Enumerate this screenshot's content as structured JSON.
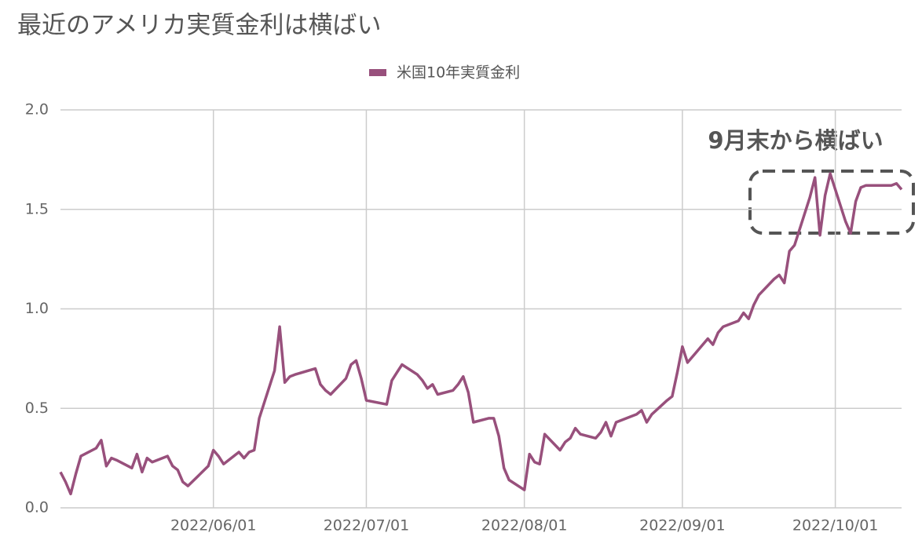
{
  "chart_data": {
    "type": "line",
    "title": "最近のアメリカ実質金利は横ばい",
    "annotation": "9月末から横ばい",
    "x": [
      "2022/05/02",
      "2022/05/03",
      "2022/05/04",
      "2022/05/05",
      "2022/05/06",
      "2022/05/09",
      "2022/05/10",
      "2022/05/11",
      "2022/05/12",
      "2022/05/13",
      "2022/05/16",
      "2022/05/17",
      "2022/05/18",
      "2022/05/19",
      "2022/05/20",
      "2022/05/23",
      "2022/05/24",
      "2022/05/25",
      "2022/05/26",
      "2022/05/27",
      "2022/05/31",
      "2022/06/01",
      "2022/06/02",
      "2022/06/03",
      "2022/06/06",
      "2022/06/07",
      "2022/06/08",
      "2022/06/09",
      "2022/06/10",
      "2022/06/13",
      "2022/06/14",
      "2022/06/15",
      "2022/06/16",
      "2022/06/17",
      "2022/06/21",
      "2022/06/22",
      "2022/06/23",
      "2022/06/24",
      "2022/06/27",
      "2022/06/28",
      "2022/06/29",
      "2022/06/30",
      "2022/07/01",
      "2022/07/05",
      "2022/07/06",
      "2022/07/07",
      "2022/07/08",
      "2022/07/11",
      "2022/07/12",
      "2022/07/13",
      "2022/07/14",
      "2022/07/15",
      "2022/07/18",
      "2022/07/19",
      "2022/07/20",
      "2022/07/21",
      "2022/07/22",
      "2022/07/25",
      "2022/07/26",
      "2022/07/27",
      "2022/07/28",
      "2022/07/29",
      "2022/08/01",
      "2022/08/02",
      "2022/08/03",
      "2022/08/04",
      "2022/08/05",
      "2022/08/08",
      "2022/08/09",
      "2022/08/10",
      "2022/08/11",
      "2022/08/12",
      "2022/08/15",
      "2022/08/16",
      "2022/08/17",
      "2022/08/18",
      "2022/08/19",
      "2022/08/22",
      "2022/08/23",
      "2022/08/24",
      "2022/08/25",
      "2022/08/26",
      "2022/08/29",
      "2022/08/30",
      "2022/08/31",
      "2022/09/01",
      "2022/09/02",
      "2022/09/06",
      "2022/09/07",
      "2022/09/08",
      "2022/09/09",
      "2022/09/12",
      "2022/09/13",
      "2022/09/14",
      "2022/09/15",
      "2022/09/16",
      "2022/09/19",
      "2022/09/20",
      "2022/09/21",
      "2022/09/22",
      "2022/09/23",
      "2022/09/26",
      "2022/09/27",
      "2022/09/28",
      "2022/09/29",
      "2022/09/30",
      "2022/10/03",
      "2022/10/04",
      "2022/10/05",
      "2022/10/06",
      "2022/10/07",
      "2022/10/11",
      "2022/10/12",
      "2022/10/13",
      "2022/10/14"
    ],
    "series": [
      {
        "name": "米国10年実質金利",
        "color": "#98507c",
        "values": [
          0.18,
          0.13,
          0.07,
          0.17,
          0.26,
          0.3,
          0.34,
          0.21,
          0.25,
          0.24,
          0.2,
          0.27,
          0.18,
          0.25,
          0.23,
          0.26,
          0.21,
          0.19,
          0.13,
          0.11,
          0.21,
          0.29,
          0.26,
          0.22,
          0.28,
          0.25,
          0.28,
          0.29,
          0.45,
          0.69,
          0.91,
          0.63,
          0.66,
          0.67,
          0.7,
          0.62,
          0.59,
          0.57,
          0.65,
          0.72,
          0.74,
          0.65,
          0.54,
          0.52,
          0.64,
          0.68,
          0.72,
          0.67,
          0.64,
          0.6,
          0.62,
          0.57,
          0.59,
          0.62,
          0.66,
          0.58,
          0.43,
          0.45,
          0.45,
          0.36,
          0.2,
          0.14,
          0.09,
          0.27,
          0.23,
          0.22,
          0.37,
          0.29,
          0.33,
          0.35,
          0.4,
          0.37,
          0.35,
          0.38,
          0.43,
          0.36,
          0.43,
          0.46,
          0.47,
          0.49,
          0.43,
          0.47,
          0.54,
          0.56,
          0.68,
          0.81,
          0.73,
          0.85,
          0.82,
          0.88,
          0.91,
          0.94,
          0.98,
          0.95,
          1.02,
          1.07,
          1.15,
          1.17,
          1.13,
          1.29,
          1.32,
          1.56,
          1.66,
          1.37,
          1.57,
          1.68,
          1.44,
          1.38,
          1.54,
          1.61,
          1.62,
          1.62,
          1.62,
          1.63,
          1.6
        ]
      }
    ],
    "xlim": [
      "2022/05/02",
      "2022/10/14"
    ],
    "xticks": [
      "2022/06/01",
      "2022/07/01",
      "2022/08/01",
      "2022/09/01",
      "2022/10/01"
    ],
    "ylim": [
      0,
      2
    ],
    "yticks": [
      {
        "value": 0,
        "label": "0.0"
      },
      0.5,
      {
        "value": 1,
        "label": "1.0"
      },
      1.5,
      {
        "value": 2,
        "label": "2.0"
      }
    ],
    "grid": true
  }
}
